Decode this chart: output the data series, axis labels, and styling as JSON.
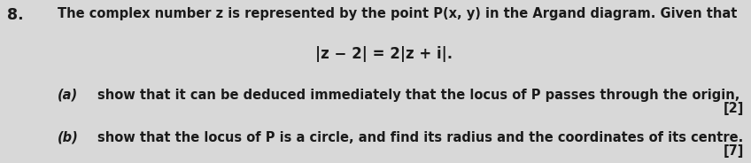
{
  "question_number": "8.",
  "background_color": "#d8d8d8",
  "text_color": "#1a1a1a",
  "line1": "The complex number z is represented by the point P(x, y) in the Argand diagram. Given that",
  "line2": "|z − 2| = 2|z + i|.",
  "part_a_label": "(a)",
  "part_a_text": "show that it can be deduced immediately that the locus of P passes through the origin,",
  "part_a_marks": "[2]",
  "part_b_label": "(b)",
  "part_b_text": "show that the locus of P is a circle, and find its radius and the coordinates of its centre.",
  "part_b_marks": "[7]",
  "font_size_main": 10.5,
  "font_size_eq": 12.0,
  "qnum_fontsize": 12.5,
  "figwidth": 8.48,
  "figheight": 1.84,
  "dpi": 100
}
